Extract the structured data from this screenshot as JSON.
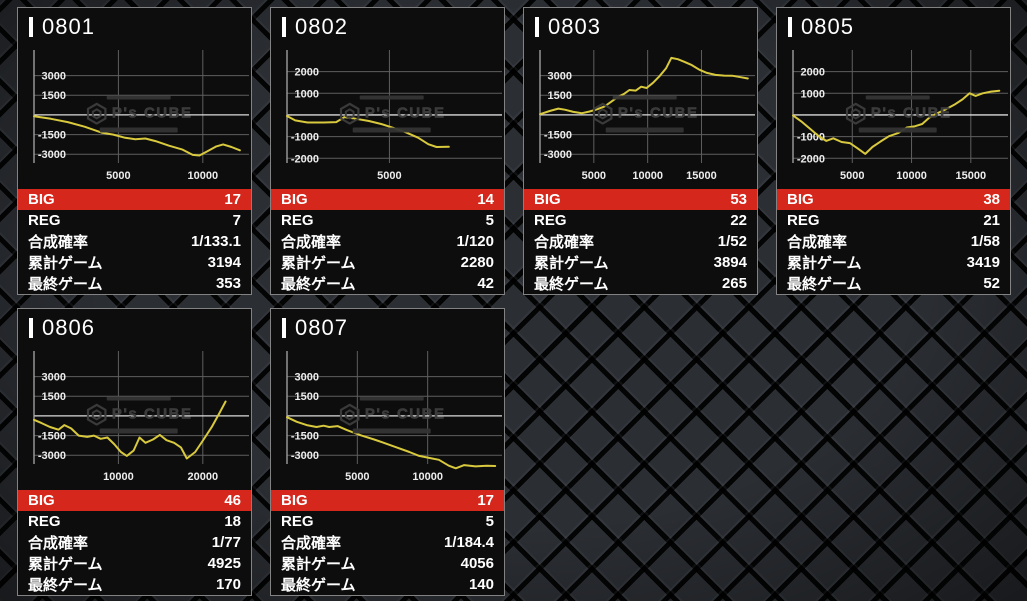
{
  "watermark": {
    "brand": "P's CUBE"
  },
  "labels": {
    "big": "BIG",
    "reg": "REG",
    "rate": "合成確率",
    "total_games": "累計ゲーム",
    "last_game": "最終ゲーム"
  },
  "colors": {
    "accent_red": "#d5271b",
    "line_yellow": "#d9c93e",
    "grid_gray": "#5f5f5f",
    "zero_line": "#dcdcdc",
    "axis_gray": "#a8a8a8",
    "card_bg": "#0d0d0d",
    "card_border": "#828282"
  },
  "machines": [
    {
      "id": "0801",
      "stats": {
        "big": "17",
        "reg": "7",
        "rate": "1/133.1",
        "total_games": "3194",
        "last_game": "353"
      },
      "chart_data": {
        "type": "line",
        "xlabel": "games",
        "ylabel": "payout",
        "xticks": [
          5000,
          10000
        ],
        "yticks": [
          3000,
          1500,
          -1500,
          -3000
        ],
        "xmax": 12500,
        "ymax": 4950,
        "ymin": -4050,
        "points": [
          [
            0,
            -100
          ],
          [
            1000,
            -300
          ],
          [
            2000,
            -550
          ],
          [
            3000,
            -900
          ],
          [
            4000,
            -1350
          ],
          [
            4700,
            -1500
          ],
          [
            5400,
            -1750
          ],
          [
            6000,
            -1850
          ],
          [
            6600,
            -1800
          ],
          [
            7200,
            -2000
          ],
          [
            8000,
            -2350
          ],
          [
            8800,
            -2650
          ],
          [
            9400,
            -3050
          ],
          [
            9800,
            -3100
          ],
          [
            10300,
            -2750
          ],
          [
            10800,
            -2400
          ],
          [
            11200,
            -2250
          ],
          [
            11700,
            -2450
          ],
          [
            12200,
            -2700
          ]
        ]
      }
    },
    {
      "id": "0802",
      "stats": {
        "big": "14",
        "reg": "5",
        "rate": "1/120",
        "total_games": "2280",
        "last_game": "42"
      },
      "chart_data": {
        "type": "line",
        "xlabel": "games",
        "ylabel": "payout",
        "xticks": [
          5000
        ],
        "yticks": [
          2000,
          1000,
          -1000,
          -2000
        ],
        "xmax": 10300,
        "ymax": 3000,
        "ymin": -2450,
        "points": [
          [
            0,
            -50
          ],
          [
            400,
            -250
          ],
          [
            1000,
            -350
          ],
          [
            1800,
            -350
          ],
          [
            2400,
            -330
          ],
          [
            2800,
            -100
          ],
          [
            3200,
            -150
          ],
          [
            4000,
            -280
          ],
          [
            4600,
            -420
          ],
          [
            5200,
            -600
          ],
          [
            5800,
            -800
          ],
          [
            6400,
            -1050
          ],
          [
            6900,
            -1350
          ],
          [
            7300,
            -1480
          ],
          [
            7900,
            -1470
          ]
        ]
      }
    },
    {
      "id": "0803",
      "stats": {
        "big": "53",
        "reg": "22",
        "rate": "1/52",
        "total_games": "3894",
        "last_game": "265"
      },
      "chart_data": {
        "type": "line",
        "xlabel": "games",
        "ylabel": "payout",
        "xticks": [
          5000,
          10000,
          15000
        ],
        "yticks": [
          3000,
          1500,
          -1500,
          -3000
        ],
        "xmax": 19600,
        "ymax": 4950,
        "ymin": -4050,
        "points": [
          [
            0,
            50
          ],
          [
            900,
            300
          ],
          [
            1700,
            480
          ],
          [
            2300,
            400
          ],
          [
            3100,
            230
          ],
          [
            3900,
            130
          ],
          [
            4600,
            260
          ],
          [
            5300,
            430
          ],
          [
            6000,
            650
          ],
          [
            6600,
            1000
          ],
          [
            7200,
            1350
          ],
          [
            7800,
            1600
          ],
          [
            8300,
            1900
          ],
          [
            8900,
            1850
          ],
          [
            9400,
            2150
          ],
          [
            9900,
            2050
          ],
          [
            10500,
            2450
          ],
          [
            11100,
            2950
          ],
          [
            11700,
            3550
          ],
          [
            12200,
            4350
          ],
          [
            12800,
            4250
          ],
          [
            13400,
            4050
          ],
          [
            14100,
            3800
          ],
          [
            14800,
            3450
          ],
          [
            15500,
            3200
          ],
          [
            16300,
            3050
          ],
          [
            17100,
            3000
          ],
          [
            17900,
            2980
          ],
          [
            18700,
            2870
          ],
          [
            19300,
            2780
          ]
        ]
      }
    },
    {
      "id": "0805",
      "stats": {
        "big": "38",
        "reg": "21",
        "rate": "1/58",
        "total_games": "3419",
        "last_game": "52"
      },
      "chart_data": {
        "type": "line",
        "xlabel": "games",
        "ylabel": "payout",
        "xticks": [
          5000,
          10000,
          15000
        ],
        "yticks": [
          2000,
          1000,
          -1000,
          -2000
        ],
        "xmax": 17800,
        "ymax": 3000,
        "ymin": -2450,
        "points": [
          [
            0,
            -20
          ],
          [
            700,
            -300
          ],
          [
            1400,
            -620
          ],
          [
            2100,
            -950
          ],
          [
            2800,
            -1200
          ],
          [
            3400,
            -1080
          ],
          [
            4100,
            -1250
          ],
          [
            4800,
            -1300
          ],
          [
            5400,
            -1520
          ],
          [
            6100,
            -1800
          ],
          [
            6700,
            -1480
          ],
          [
            7400,
            -1220
          ],
          [
            8100,
            -980
          ],
          [
            8900,
            -830
          ],
          [
            9600,
            -580
          ],
          [
            10300,
            -520
          ],
          [
            10900,
            -420
          ],
          [
            11500,
            -120
          ],
          [
            12100,
            60
          ],
          [
            12900,
            260
          ],
          [
            13600,
            470
          ],
          [
            14300,
            720
          ],
          [
            14900,
            1000
          ],
          [
            15400,
            880
          ],
          [
            16000,
            1000
          ],
          [
            16700,
            1080
          ],
          [
            17400,
            1120
          ]
        ]
      }
    },
    {
      "id": "0806",
      "stats": {
        "big": "46",
        "reg": "18",
        "rate": "1/77",
        "total_games": "4925",
        "last_game": "170"
      },
      "chart_data": {
        "type": "line",
        "xlabel": "games",
        "ylabel": "payout",
        "xticks": [
          10000,
          20000
        ],
        "yticks": [
          3000,
          1500,
          -1500,
          -3000
        ],
        "xmax": 25000,
        "ymax": 4950,
        "ymin": -4050,
        "points": [
          [
            0,
            -300
          ],
          [
            900,
            -550
          ],
          [
            1900,
            -850
          ],
          [
            2900,
            -1050
          ],
          [
            3600,
            -700
          ],
          [
            4400,
            -950
          ],
          [
            5300,
            -1500
          ],
          [
            6300,
            -1600
          ],
          [
            7100,
            -1500
          ],
          [
            7900,
            -1750
          ],
          [
            8700,
            -1650
          ],
          [
            9500,
            -2150
          ],
          [
            10300,
            -2750
          ],
          [
            11000,
            -3050
          ],
          [
            11800,
            -2650
          ],
          [
            12500,
            -1650
          ],
          [
            13200,
            -2050
          ],
          [
            14100,
            -1800
          ],
          [
            14900,
            -1450
          ],
          [
            15700,
            -1850
          ],
          [
            16600,
            -2050
          ],
          [
            17400,
            -2400
          ],
          [
            18100,
            -3250
          ],
          [
            19100,
            -2750
          ],
          [
            20100,
            -1800
          ],
          [
            21100,
            -800
          ],
          [
            22000,
            250
          ],
          [
            22700,
            1100
          ]
        ]
      }
    },
    {
      "id": "0807",
      "stats": {
        "big": "17",
        "reg": "5",
        "rate": "1/184.4",
        "total_games": "4056",
        "last_game": "140"
      },
      "chart_data": {
        "type": "line",
        "xlabel": "games",
        "ylabel": "payout",
        "xticks": [
          5000,
          10000
        ],
        "yticks": [
          3000,
          1500,
          -1500,
          -3000
        ],
        "xmax": 15000,
        "ymax": 4950,
        "ymin": -4050,
        "points": [
          [
            0,
            -100
          ],
          [
            700,
            -450
          ],
          [
            1400,
            -700
          ],
          [
            2100,
            -850
          ],
          [
            2600,
            -750
          ],
          [
            3000,
            -850
          ],
          [
            3600,
            -780
          ],
          [
            4300,
            -1100
          ],
          [
            5300,
            -1500
          ],
          [
            6200,
            -1800
          ],
          [
            7000,
            -2100
          ],
          [
            7800,
            -2400
          ],
          [
            8700,
            -2750
          ],
          [
            9400,
            -3050
          ],
          [
            10100,
            -3200
          ],
          [
            10800,
            -3350
          ],
          [
            11500,
            -3800
          ],
          [
            12000,
            -4000
          ],
          [
            12600,
            -3750
          ],
          [
            13400,
            -3850
          ],
          [
            14200,
            -3800
          ],
          [
            14800,
            -3820
          ]
        ]
      }
    }
  ]
}
